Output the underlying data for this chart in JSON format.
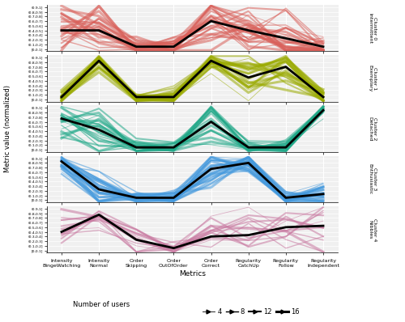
{
  "metrics": [
    "Intensity\nBingeWatching",
    "Intensity\nNormal",
    "Order\nSkipping",
    "Order\nOutOfOrder",
    "Order\nCorrect",
    "Regularity\nCatchUp",
    "Regularity\nFollow",
    "Regularity\nIndependent"
  ],
  "xlabel": "Metrics",
  "ylabel": "Metric value (normalized)",
  "clusters": [
    {
      "name": "Cluster 0\nIntermittent",
      "color": "#d9605a",
      "median": [
        0.45,
        0.45,
        0.1,
        0.1,
        0.65,
        0.45,
        0.28,
        0.1
      ],
      "spread": [
        0.25,
        0.25,
        0.15,
        0.12,
        0.28,
        0.25,
        0.25,
        0.15
      ]
    },
    {
      "name": "Cluster 1\nExemplary",
      "color": "#9aaa00",
      "median": [
        0.1,
        0.88,
        0.1,
        0.1,
        0.88,
        0.52,
        0.75,
        0.1
      ],
      "spread": [
        0.08,
        0.1,
        0.08,
        0.08,
        0.1,
        0.3,
        0.18,
        0.08
      ]
    },
    {
      "name": "Cluster 2\nDetached",
      "color": "#20a888",
      "median": [
        0.72,
        0.48,
        0.1,
        0.1,
        0.65,
        0.1,
        0.1,
        0.9
      ],
      "spread": [
        0.2,
        0.25,
        0.08,
        0.08,
        0.25,
        0.08,
        0.08,
        0.08
      ]
    },
    {
      "name": "Cluster 3\nEnthusiastic",
      "color": "#4499dd",
      "median": [
        0.88,
        0.28,
        0.1,
        0.1,
        0.72,
        0.85,
        0.1,
        0.18
      ],
      "spread": [
        0.1,
        0.2,
        0.08,
        0.08,
        0.2,
        0.12,
        0.08,
        0.15
      ]
    },
    {
      "name": "Cluster 4\nNibbles",
      "color": "#c878a0",
      "median": [
        0.45,
        0.82,
        0.28,
        0.1,
        0.35,
        0.38,
        0.55,
        0.58
      ],
      "spread": [
        0.25,
        0.15,
        0.2,
        0.08,
        0.22,
        0.25,
        0.25,
        0.28
      ]
    }
  ],
  "ytick_labels": [
    "[0,0.1]",
    "(0.1,0.2]",
    "(0.2,0.3]",
    "(0.3,0.4]",
    "(0.4,0.5]",
    "(0.5,0.6]",
    "(0.6,0.7]",
    "(0.7,0.8]",
    "(0.8,0.9]",
    "(0.9,1]"
  ],
  "n_lines_per_cluster": [
    28,
    22,
    25,
    28,
    14
  ],
  "background_color": "#f0f0f0",
  "panel_label_bg": "#d0d0d0",
  "legend_sizes": [
    "4",
    "8",
    "12",
    "16"
  ],
  "legend_lws": [
    0.6,
    1.0,
    1.5,
    2.2
  ]
}
